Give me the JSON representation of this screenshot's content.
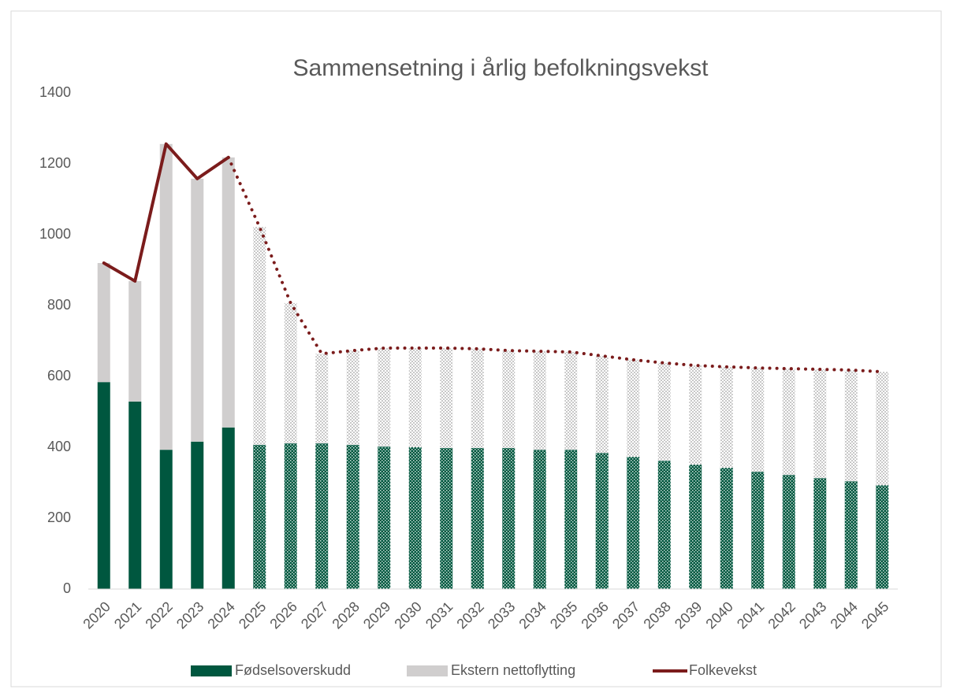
{
  "chart_data": {
    "type": "bar-line",
    "title": "Sammensetning i årlig befolkningsvekst",
    "categories": [
      "2020",
      "2021",
      "2022",
      "2023",
      "2024",
      "2025",
      "2026",
      "2027",
      "2028",
      "2029",
      "2030",
      "2031",
      "2032",
      "2033",
      "2034",
      "2035",
      "2036",
      "2037",
      "2038",
      "2039",
      "2040",
      "2041",
      "2042",
      "2043",
      "2044",
      "2045"
    ],
    "projection_from": "2025",
    "series": [
      {
        "name": "Fødselsoverskudd",
        "color": "#00573f",
        "kind": "bar",
        "values": [
          584,
          529,
          393,
          416,
          456,
          407,
          411,
          411,
          407,
          402,
          400,
          398,
          398,
          398,
          393,
          393,
          384,
          373,
          362,
          351,
          342,
          331,
          322,
          313,
          304,
          293
        ]
      },
      {
        "name": "Ekstern nettoflytting",
        "color": "#d0cece",
        "kind": "bar",
        "values": [
          336,
          340,
          863,
          742,
          762,
          615,
          396,
          253,
          266,
          278,
          280,
          282,
          280,
          275,
          278,
          276,
          274,
          274,
          276,
          280,
          285,
          293,
          300,
          307,
          314,
          320
        ]
      },
      {
        "name": "Folkevekst",
        "color": "#7b1c1c",
        "kind": "line",
        "values": [
          920,
          869,
          1256,
          1158,
          1218,
          1022,
          807,
          664,
          673,
          680,
          680,
          680,
          678,
          673,
          671,
          669,
          658,
          647,
          638,
          631,
          627,
          624,
          622,
          620,
          618,
          613
        ]
      }
    ],
    "ylim": [
      0,
      1400
    ],
    "yticks": [
      0,
      200,
      400,
      600,
      800,
      1000,
      1200,
      1400
    ],
    "grid": false,
    "legend": "bottom"
  }
}
